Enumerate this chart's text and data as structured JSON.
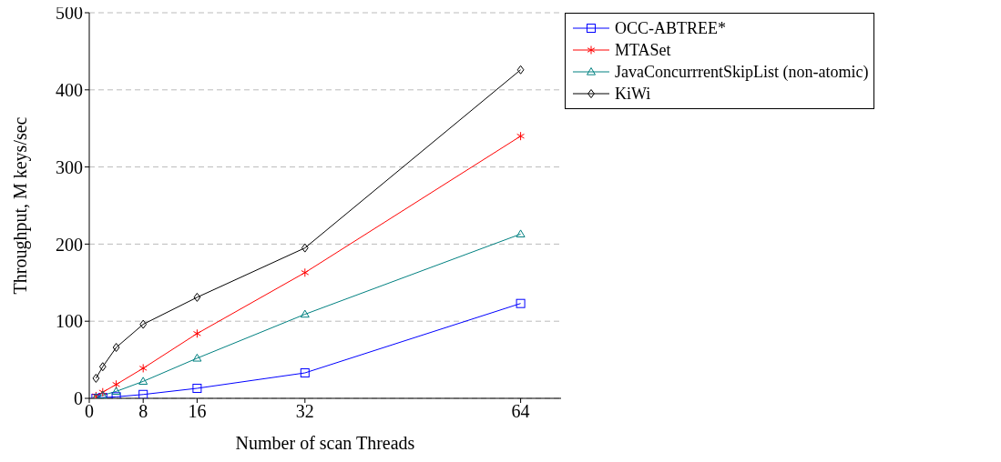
{
  "chart_data": {
    "type": "line",
    "xlabel": "Number of scan Threads",
    "ylabel": "Throughput, M keys/sec",
    "x": [
      1,
      2,
      4,
      8,
      16,
      32,
      64
    ],
    "xlim": [
      0,
      70
    ],
    "xticks": [
      0,
      8,
      16,
      32,
      64
    ],
    "ylim": [
      0,
      500
    ],
    "yticks": [
      0,
      100,
      200,
      300,
      400,
      500
    ],
    "grid": "y",
    "legend": "right",
    "line_style": "solid",
    "series": [
      {
        "name": "OCC-ABTREE*",
        "color": "#0000ff",
        "marker": "square",
        "values": [
          0,
          1,
          2,
          5,
          13,
          33,
          123
        ]
      },
      {
        "name": "MTASet",
        "color": "#ff0000",
        "marker": "cross",
        "values": [
          3,
          8,
          18,
          39,
          84,
          163,
          340
        ]
      },
      {
        "name": "JavaConcurrrentSkipList (non-atomic)",
        "color": "#008080",
        "marker": "triangle",
        "values": [
          1,
          4,
          9,
          22,
          52,
          109,
          213
        ]
      },
      {
        "name": "KiWi",
        "color": "#000000",
        "marker": "diamond",
        "values": [
          26,
          41,
          66,
          96,
          131,
          195,
          426
        ]
      }
    ]
  }
}
